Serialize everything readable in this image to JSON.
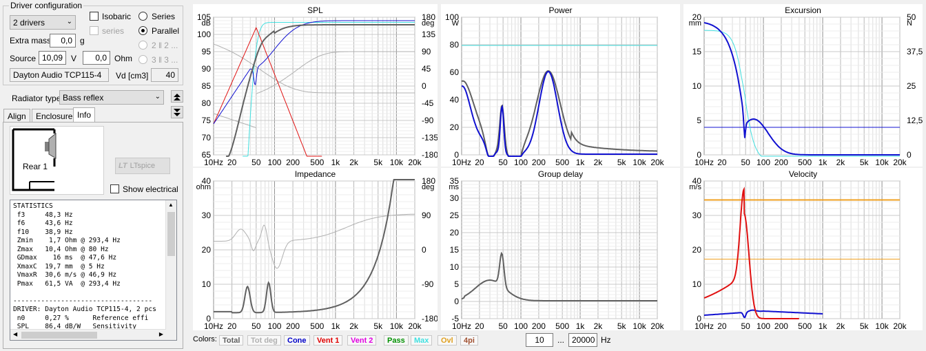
{
  "driver_config": {
    "title": "Driver configuration",
    "drivers_select": "2 drivers",
    "extra_mass_label": "Extra mass",
    "extra_mass_value": "0,0",
    "extra_mass_unit": "g",
    "source_label": "Source",
    "source_voltage": "10,09",
    "voltage_unit": "V",
    "source_ohm": "0,0",
    "ohm_unit": "Ohm",
    "driver_name": "Dayton Audio TCP115-4",
    "vd_label": "Vd [cm3]",
    "vd_value": "40",
    "isobaric_label": "Isobaric",
    "series_label": "series",
    "series_radio": "Series",
    "parallel_radio": "Parallel",
    "opt_2": "2 ‖ 2 ...",
    "opt_3": "3 ‖ 3 ..."
  },
  "radiator": {
    "label": "Radiator type",
    "value": "Bass reflex"
  },
  "tabs": [
    "Align",
    "Enclosure",
    "Info"
  ],
  "info": {
    "rear_label": "Rear 1",
    "ltspice_label": "LTspice",
    "show_electrical": "Show electrical"
  },
  "statistics": "STATISTICS\n f3     48,3 Hz\n f6     43,6 Hz\n f10    38,9 Hz\n Zmin    1,7 Ohm @ 293,4 Hz\n Zmax   10,4 Ohm @ 80 Hz\n GDmax    16 ms  @ 47,6 Hz\n XmaxC  19,7 mm  @ 5 Hz\n VmaxR  30,6 m/s @ 46,9 Hz\n Pmax   61,5 VA  @ 293,4 Hz\n\n-----------------------------------\nDRIVER: Dayton Audio TCP115-4, 2 pcs\n n0     0,27 %      Reference effi\n SPL    86,4 dB/W   Sensitivity",
  "x_ticks": [
    "10Hz",
    "20",
    "50",
    "100",
    "200",
    "500",
    "1k",
    "2k",
    "5k",
    "10k",
    "20k"
  ],
  "graphs": {
    "spl": {
      "title": "SPL",
      "unit_left": "dB",
      "unit_right": "deg",
      "left_ticks": [
        "105",
        "100",
        "95",
        "90",
        "85",
        "80",
        "75",
        "70",
        "65"
      ],
      "right_ticks": [
        "180",
        "135",
        "90",
        "45",
        "0",
        "-45",
        "-90",
        "-135",
        "-180"
      ]
    },
    "power": {
      "title": "Power",
      "unit_left": "W",
      "left_ticks": [
        "100",
        "80",
        "60",
        "40",
        "20",
        "0"
      ]
    },
    "excursion": {
      "title": "Excursion",
      "unit_left": "mm",
      "unit_right": "N",
      "left_ticks": [
        "20",
        "15",
        "10",
        "5",
        "0"
      ],
      "right_ticks": [
        "50",
        "37,5",
        "25",
        "12,5",
        "0"
      ]
    },
    "impedance": {
      "title": "Impedance",
      "unit_left": "ohm",
      "unit_right": "deg",
      "left_ticks": [
        "40",
        "30",
        "20",
        "10",
        "0"
      ],
      "right_ticks": [
        "180",
        "90",
        "0",
        "-90",
        "-180"
      ]
    },
    "group_delay": {
      "title": "Group delay",
      "unit_left": "ms",
      "left_ticks": [
        "35",
        "30",
        "25",
        "20",
        "15",
        "10",
        "5",
        "0",
        "-5"
      ]
    },
    "velocity": {
      "title": "Velocity",
      "unit_left": "m/s",
      "left_ticks": [
        "40",
        "30",
        "20",
        "10",
        "0"
      ]
    }
  },
  "bottom": {
    "colors_label": "Colors:",
    "chips": [
      {
        "label": "Total",
        "color": "#606060"
      },
      {
        "label": "Tot deg",
        "color": "#b0b0b0"
      },
      {
        "label": "Cone",
        "color": "#0000c8"
      },
      {
        "label": "Vent 1",
        "color": "#e00000"
      },
      {
        "label": "Vent 2",
        "color": "#e000e0"
      },
      {
        "label": "Pass",
        "color": "#009000"
      },
      {
        "label": "Max",
        "color": "#40e0e0"
      },
      {
        "label": "Ovl",
        "color": "#e0a020"
      },
      {
        "label": "4pi",
        "color": "#a05030"
      }
    ],
    "freq_from": "10",
    "freq_sep": "...",
    "freq_to": "20000",
    "freq_unit": "Hz"
  },
  "colors": {
    "total": "#606060",
    "cone": "#1010d0",
    "vent": "#e01010",
    "max": "#40e0e0",
    "ovl": "#f0a020",
    "phase": "#b0b0b0"
  }
}
